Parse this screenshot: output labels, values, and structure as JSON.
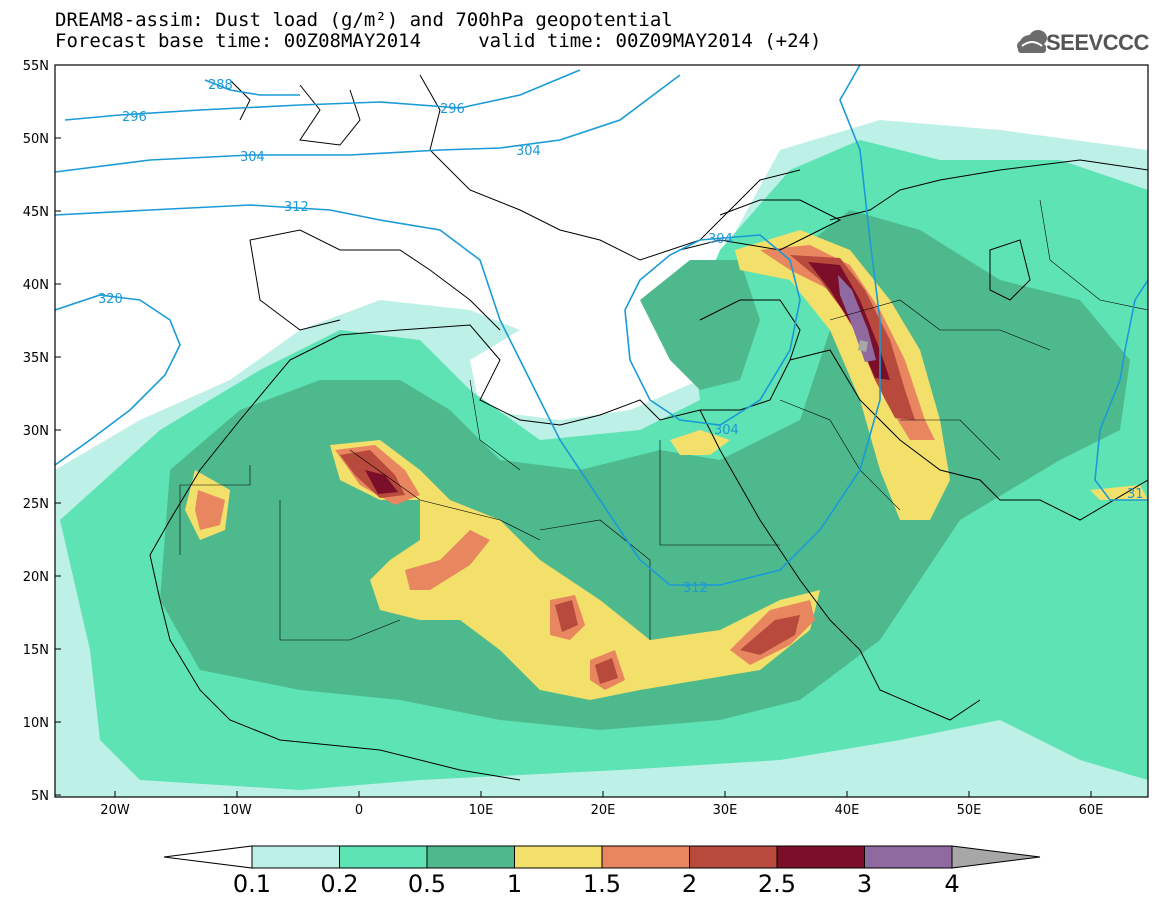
{
  "title": {
    "line1": "DREAM8-assim: Dust load (g/m²) and 700hPa geopotential",
    "line2": "Forecast base time: 00Z08MAY2014     valid time: 00Z09MAY2014 (+24)"
  },
  "logo": {
    "text": "SEEVCCC",
    "icon": "cloud-logo-icon"
  },
  "axes": {
    "lat_labels": [
      "55N",
      "50N",
      "45N",
      "40N",
      "35N",
      "30N",
      "25N",
      "20N",
      "15N",
      "10N",
      "5N"
    ],
    "lon_labels": [
      "20W",
      "10W",
      "0",
      "10E",
      "20E",
      "30E",
      "40E",
      "50E",
      "60E"
    ]
  },
  "contours": {
    "color": "#1a9ad6",
    "labels": [
      "288",
      "296",
      "296",
      "304",
      "304",
      "304",
      "312",
      "320",
      "304",
      "312",
      "31"
    ]
  },
  "colorbar": {
    "labels": [
      "0.1",
      "0.2",
      "0.5",
      "1",
      "1.5",
      "2",
      "2.5",
      "3",
      "4"
    ],
    "colors": [
      "#ffffff",
      "#bdf0e6",
      "#5ee3b5",
      "#4fb98e",
      "#f2e06b",
      "#e8865f",
      "#b8493d",
      "#7b0f2a",
      "#8e6aa0",
      "#a7a7a7"
    ]
  }
}
